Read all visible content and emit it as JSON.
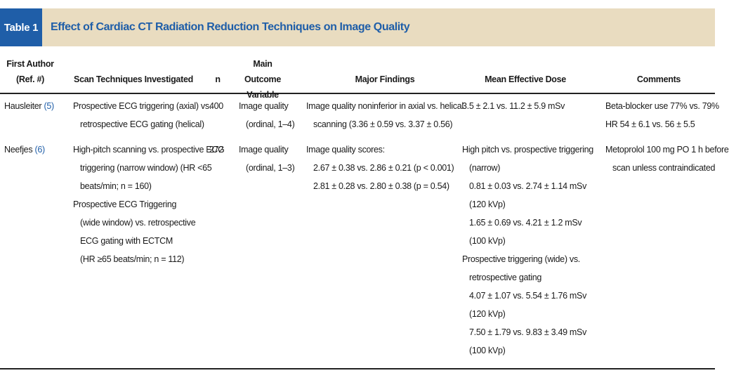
{
  "title": {
    "label": "Table 1",
    "text": "Effect of Cardiac CT Radiation Reduction Techniques on Image Quality"
  },
  "headers": {
    "author": [
      "First Author",
      "(Ref. #)"
    ],
    "scan": "Scan Techniques Investigated",
    "n": "n",
    "outcome": [
      "Main Outcome",
      "Variable"
    ],
    "findings": "Major Findings",
    "dose": "Mean Effective Dose",
    "comments": "Comments"
  },
  "rows": [
    {
      "author": "Hausleiter",
      "ref": "(5)",
      "scan": [
        "Prospective ECG triggering (axial) vs.",
        "retrospective ECG gating (helical)"
      ],
      "n": "400",
      "outcome": [
        "Image quality",
        "(ordinal, 1–4)"
      ],
      "findings": [
        "Image quality noninferior in axial vs. helical",
        "scanning (3.36 ± 0.59 vs. 3.37 ± 0.56)"
      ],
      "dose": [
        "3.5 ± 2.1 vs. 11.2 ± 5.9 mSv"
      ],
      "comments": [
        "Beta-blocker use 77% vs. 79%",
        "HR 54 ± 6.1 vs. 56 ± 5.5"
      ]
    },
    {
      "author": "Neefjes",
      "ref": "(6)",
      "scan": [
        "High-pitch scanning vs. prospective ECG",
        "triggering (narrow window) (HR <65",
        "beats/min; n = 160)",
        "Prospective ECG Triggering",
        "(wide window) vs. retrospective",
        "ECG gating with ECTCM",
        "(HR ≥65 beats/min; n = 112)"
      ],
      "n": "272",
      "outcome": [
        "Image quality",
        "(ordinal, 1–3)"
      ],
      "findings": [
        "Image quality scores:",
        "2.67 ± 0.38 vs. 2.86 ± 0.21 (p < 0.001)",
        "2.81 ± 0.28 vs. 2.80 ± 0.38 (p = 0.54)"
      ],
      "dose": [
        "High pitch vs. prospective triggering",
        "(narrow)",
        "0.81 ± 0.03 vs. 2.74 ± 1.14 mSv",
        "(120 kVp)",
        "1.65 ± 0.69 vs. 4.21 ± 1.2 mSv",
        "(100 kVp)",
        "Prospective triggering (wide) vs.",
        "retrospective gating",
        "4.07 ± 1.07 vs. 5.54 ± 1.76 mSv",
        "(120 kVp)",
        "7.50 ± 1.79 vs. 9.83 ± 3.49 mSv",
        "(100 kVp)"
      ],
      "comments": [
        "Metoprolol 100 mg PO 1 h before",
        "scan unless contraindicated"
      ]
    }
  ]
}
